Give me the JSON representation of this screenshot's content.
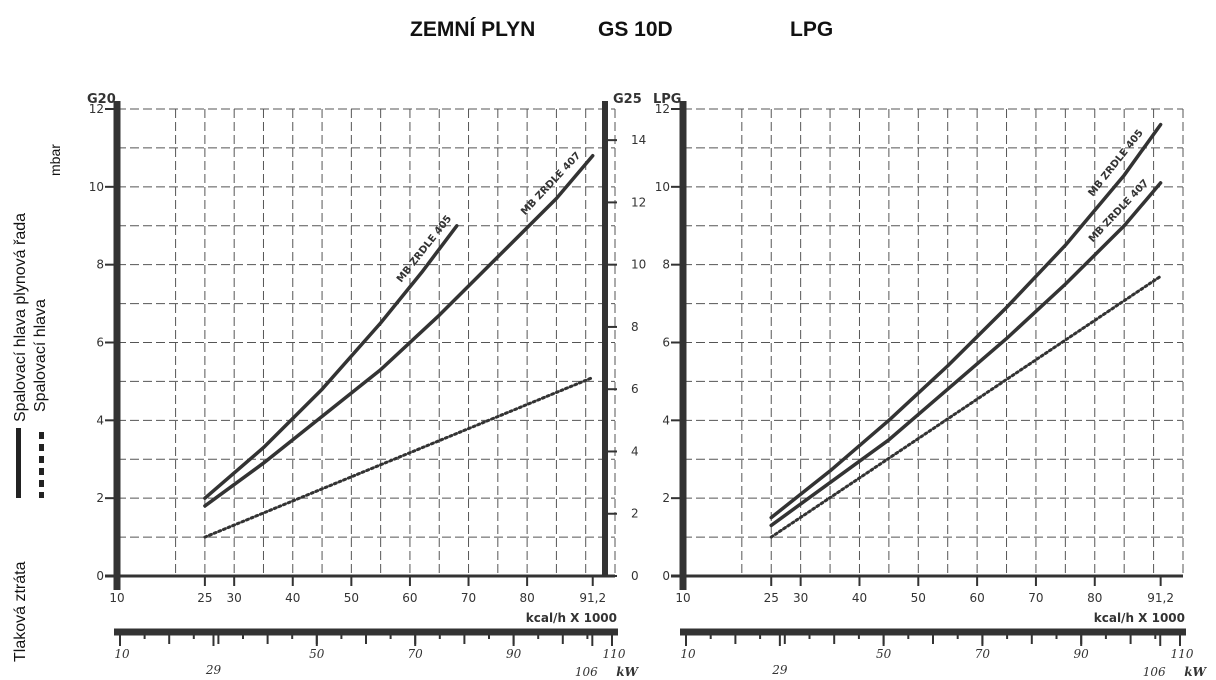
{
  "titles": {
    "main": "ZEMNÍ PLYN",
    "model": "GS 10D",
    "lpg": "LPG"
  },
  "side": {
    "label_combustion_head_gas_train": "Spalovací hlava plynová řada",
    "label_combustion_head": "Spalovací hlava",
    "label_unit": "mbar",
    "label_pressure_loss": "Tlaková ztráta"
  },
  "colors": {
    "ink": "#333333",
    "grid": "#555555",
    "background": "#ffffff"
  },
  "chart_data": [
    {
      "type": "line",
      "left_axis_label": "G20",
      "right_axis_label": "G25",
      "ylim": [
        0,
        12
      ],
      "yticks": [
        0,
        2,
        4,
        6,
        8,
        10,
        12
      ],
      "ylim_right": [
        0,
        15
      ],
      "yticks_right": [
        0,
        2,
        4,
        6,
        8,
        10,
        12,
        14
      ],
      "xlim": [
        10,
        95
      ],
      "xticks": [
        "10",
        "25",
        "30",
        "40",
        "50",
        "60",
        "70",
        "80",
        "91,2"
      ],
      "xtick_values": [
        10,
        25,
        30,
        40,
        50,
        60,
        70,
        80,
        91.2
      ],
      "xlabel": "kcal/h X 1000",
      "kw_ticks": [
        "10",
        "29",
        "50",
        "70",
        "90",
        "106",
        "110"
      ],
      "kw_tick_values": [
        10,
        29,
        50,
        70,
        90,
        106,
        110
      ],
      "kw_label": "kW",
      "grid": true,
      "series": [
        {
          "name": "MB ZRDLE 405",
          "style": "solid",
          "x": [
            25,
            35,
            45,
            55,
            62,
            68
          ],
          "y": [
            2.0,
            3.3,
            4.8,
            6.5,
            7.8,
            9.0
          ]
        },
        {
          "name": "MB ZRDLE 407",
          "style": "solid",
          "x": [
            25,
            35,
            45,
            55,
            65,
            75,
            85,
            91.2
          ],
          "y": [
            1.8,
            2.9,
            4.1,
            5.3,
            6.7,
            8.2,
            9.7,
            10.8
          ]
        },
        {
          "name": "",
          "style": "dotted",
          "x": [
            25,
            91.2
          ],
          "y": [
            1.0,
            5.1
          ]
        }
      ]
    },
    {
      "type": "line",
      "left_axis_label": "LPG",
      "ylim": [
        0,
        12
      ],
      "yticks": [
        0,
        2,
        4,
        6,
        8,
        10,
        12
      ],
      "xlim": [
        10,
        95
      ],
      "xticks": [
        "10",
        "25",
        "30",
        "40",
        "50",
        "60",
        "70",
        "80",
        "91,2"
      ],
      "xtick_values": [
        10,
        25,
        30,
        40,
        50,
        60,
        70,
        80,
        91.2
      ],
      "xlabel": "kcal/h X 1000",
      "kw_ticks": [
        "10",
        "29",
        "50",
        "70",
        "90",
        "106",
        "110"
      ],
      "kw_tick_values": [
        10,
        29,
        50,
        70,
        90,
        106,
        110
      ],
      "kw_label": "kW",
      "grid": true,
      "series": [
        {
          "name": "MB ZRDLE 405",
          "style": "solid",
          "x": [
            25,
            35,
            45,
            55,
            65,
            75,
            85,
            91.2
          ],
          "y": [
            1.5,
            2.7,
            4.0,
            5.4,
            6.9,
            8.5,
            10.3,
            11.6
          ]
        },
        {
          "name": "MB ZRDLE 407",
          "style": "solid",
          "x": [
            25,
            35,
            45,
            55,
            65,
            75,
            85,
            91.2
          ],
          "y": [
            1.3,
            2.4,
            3.5,
            4.8,
            6.1,
            7.5,
            9.0,
            10.1
          ]
        },
        {
          "name": "",
          "style": "dotted",
          "x": [
            25,
            91.2
          ],
          "y": [
            1.0,
            7.7
          ]
        }
      ]
    }
  ]
}
